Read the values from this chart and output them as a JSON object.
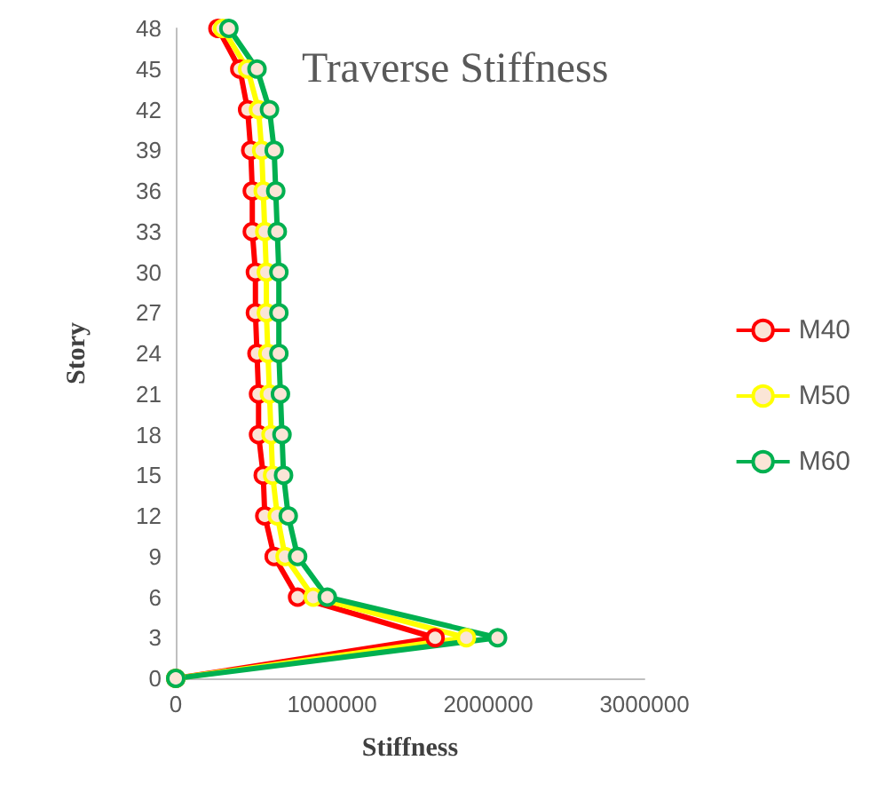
{
  "chart_data": {
    "type": "line",
    "title": "Traverse Stiffness",
    "xlabel": "Stiffness",
    "ylabel": "Story",
    "series": [
      {
        "name": "M40",
        "color": "#ff0000",
        "values": [
          0,
          3,
          6,
          9,
          12,
          15,
          18,
          21,
          24,
          27,
          30,
          33,
          36,
          39,
          42,
          45,
          48
        ],
        "x": [
          0,
          1660000,
          780000,
          630000,
          570000,
          560000,
          530000,
          530000,
          520000,
          510000,
          510000,
          490000,
          490000,
          480000,
          460000,
          410000,
          270000
        ]
      },
      {
        "name": "M50",
        "color": "#ffff00",
        "values": [
          0,
          3,
          6,
          9,
          12,
          15,
          18,
          21,
          24,
          27,
          30,
          33,
          36,
          39,
          42,
          45,
          48
        ],
        "x": [
          0,
          1860000,
          880000,
          700000,
          650000,
          620000,
          610000,
          600000,
          590000,
          580000,
          580000,
          570000,
          560000,
          550000,
          530000,
          460000,
          300000
        ]
      },
      {
        "name": "M60",
        "color": "#00b050",
        "values": [
          0,
          3,
          6,
          9,
          12,
          15,
          18,
          21,
          24,
          27,
          30,
          33,
          36,
          39,
          42,
          45,
          48
        ],
        "x": [
          0,
          2060000,
          970000,
          780000,
          720000,
          690000,
          680000,
          670000,
          660000,
          660000,
          660000,
          650000,
          640000,
          630000,
          600000,
          520000,
          340000
        ]
      }
    ],
    "xlim": [
      0,
      3000000
    ],
    "xticks": [
      0,
      1000000,
      2000000,
      3000000
    ],
    "ylim": [
      0,
      48
    ],
    "yticks": [
      0,
      3,
      6,
      9,
      12,
      15,
      18,
      21,
      24,
      27,
      30,
      33,
      36,
      39,
      42,
      45,
      48
    ],
    "grid": false,
    "legend": "right",
    "marker": "circle",
    "line_style": "solid"
  }
}
